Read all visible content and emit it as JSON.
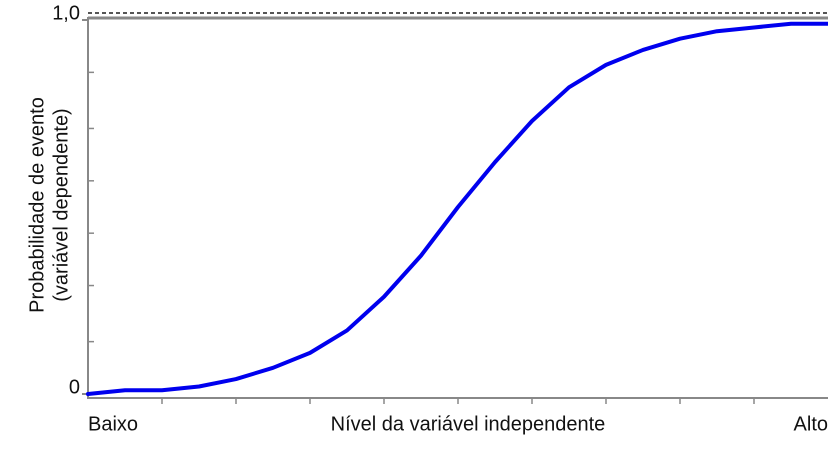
{
  "chart_data": {
    "type": "line",
    "ylabel": [
      "Probabilidade de evento",
      "(variável dependente)"
    ],
    "xlabel": "Nível da variável independente",
    "categories": [
      "Baixo",
      null,
      null,
      null,
      null,
      null,
      null,
      null,
      null,
      null,
      null,
      null,
      null,
      null,
      null,
      null,
      null,
      null,
      null,
      null,
      "Alto"
    ],
    "series": [
      {
        "color": "#0000ee",
        "values": [
          0.0,
          0.01,
          0.01,
          0.02,
          0.04,
          0.07,
          0.11,
          0.17,
          0.26,
          0.37,
          0.5,
          0.62,
          0.73,
          0.82,
          0.88,
          0.92,
          0.95,
          0.97,
          0.98,
          0.99,
          0.99
        ]
      }
    ],
    "ylim": [
      0,
      1
    ],
    "yticks": [
      0,
      {
        "value": 1,
        "label": "1,0"
      }
    ],
    "minor_yticks": [
      0.14,
      0.29,
      0.43,
      0.57,
      0.71,
      0.86
    ]
  }
}
